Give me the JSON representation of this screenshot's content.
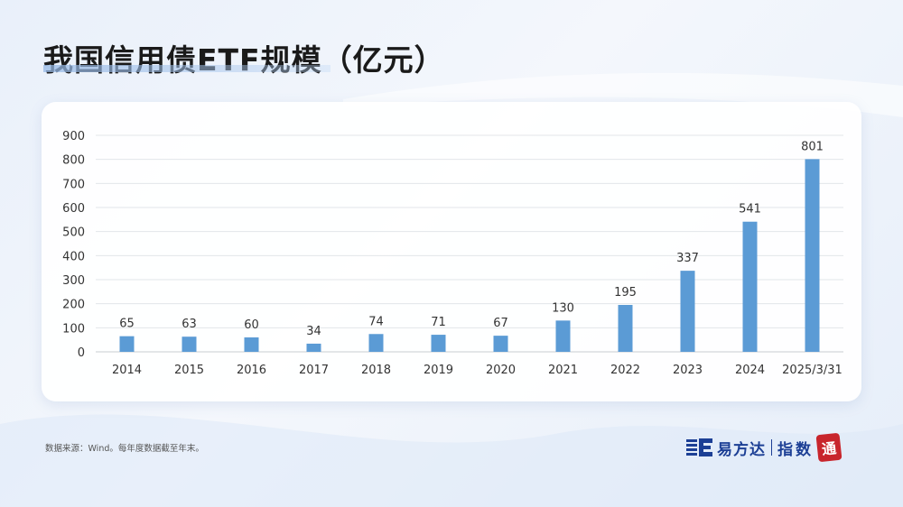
{
  "title": "我国信用债ETF规模（亿元）",
  "footnote": "数据来源：Wind。每年度数据截至年末。",
  "brand": {
    "name": "易方达",
    "sub": "指数",
    "seal": "通"
  },
  "colors": {
    "bar": "#5b9bd5",
    "accent": "#1c3f95",
    "seal": "#c8252c"
  },
  "chart_data": {
    "type": "bar",
    "categories": [
      "2014",
      "2015",
      "2016",
      "2017",
      "2018",
      "2019",
      "2020",
      "2021",
      "2022",
      "2023",
      "2024",
      "2025/3/31"
    ],
    "values": [
      65,
      63,
      60,
      34,
      74,
      71,
      67,
      130,
      195,
      337,
      541,
      801
    ],
    "data_labels": [
      "65",
      "63",
      "60",
      "34",
      "74",
      "71",
      "67",
      "130",
      "195",
      "337",
      "541",
      "801"
    ],
    "yticks": [
      0,
      100,
      200,
      300,
      400,
      500,
      600,
      700,
      800,
      900
    ],
    "ylim": [
      0,
      900
    ],
    "grid": true,
    "legend": "none",
    "title": "我国信用债ETF规模（亿元）",
    "xlabel": "",
    "ylabel": ""
  }
}
